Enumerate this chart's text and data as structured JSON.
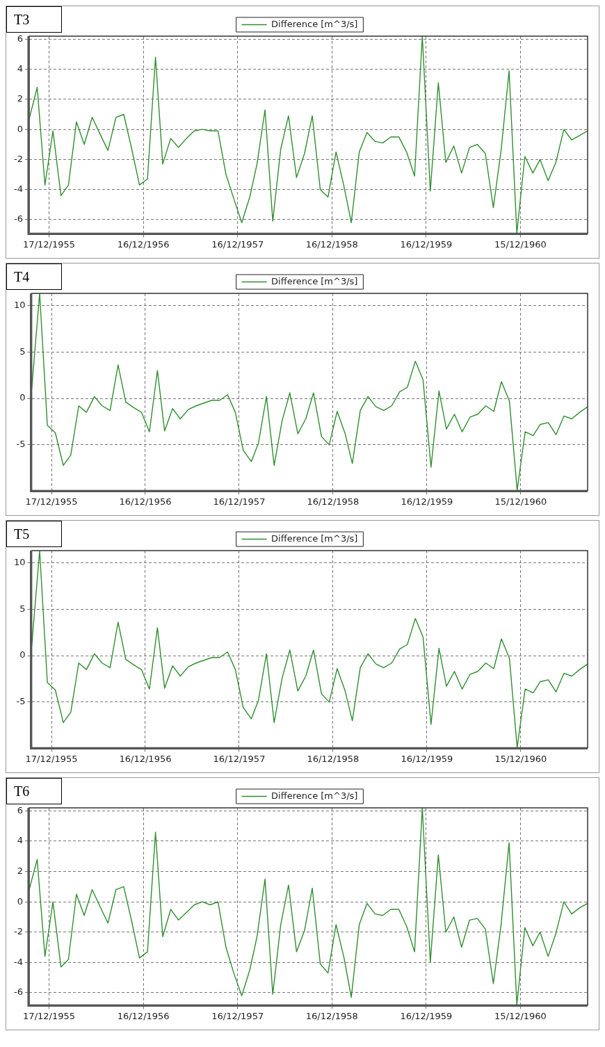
{
  "chart_data": [
    {
      "type": "line",
      "title": "T3",
      "x": [
        "1955-10",
        "1955-11",
        "1955-12",
        "1956-01",
        "1956-02",
        "1956-03",
        "1956-04",
        "1956-05",
        "1956-06",
        "1956-07",
        "1956-08",
        "1956-09",
        "1956-10",
        "1956-11",
        "1956-12",
        "1957-01",
        "1957-02",
        "1957-03",
        "1957-04",
        "1957-05",
        "1957-06",
        "1957-07",
        "1957-08",
        "1957-09",
        "1957-10",
        "1957-11",
        "1957-12",
        "1958-01",
        "1958-02",
        "1958-03",
        "1958-04",
        "1958-05",
        "1958-06",
        "1958-07",
        "1958-08",
        "1958-09",
        "1958-10",
        "1958-11",
        "1958-12",
        "1959-01",
        "1959-02",
        "1959-03",
        "1959-04",
        "1959-05",
        "1959-06",
        "1959-07",
        "1959-08",
        "1959-09",
        "1959-10",
        "1959-11",
        "1959-12",
        "1960-01",
        "1960-02",
        "1960-03",
        "1960-04",
        "1960-05",
        "1960-06",
        "1960-07",
        "1960-08",
        "1960-09",
        "1960-10",
        "1960-11",
        "1960-12",
        "1961-01",
        "1961-02",
        "1961-03",
        "1961-04",
        "1961-05",
        "1961-06",
        "1961-07",
        "1961-08",
        "1961-09"
      ],
      "series": [
        {
          "name": "Difference [m^3/s]",
          "color": "#2f8f2f",
          "values": [
            0.7,
            2.8,
            -3.7,
            -0.1,
            -4.4,
            -3.7,
            0.5,
            -1.0,
            0.8,
            -0.3,
            -1.4,
            0.8,
            1.0,
            -1.3,
            -3.7,
            -3.3,
            4.8,
            -2.3,
            -0.6,
            -1.2,
            -0.6,
            -0.1,
            0.0,
            -0.1,
            -0.1,
            -3.0,
            -4.6,
            -6.2,
            -4.5,
            -2.3,
            1.3,
            -6.1,
            -1.3,
            0.9,
            -3.2,
            -1.6,
            0.9,
            -4.0,
            -4.5,
            -1.5,
            -3.8,
            -6.2,
            -1.5,
            -0.2,
            -0.8,
            -0.9,
            -0.5,
            -0.5,
            -1.5,
            -3.1,
            6.2,
            -4.1,
            3.1,
            -2.2,
            -1.1,
            -2.9,
            -1.2,
            -1.0,
            -1.6,
            -5.2,
            -1.4,
            3.9,
            -6.9,
            -1.8,
            -2.9,
            -2.0,
            -3.4,
            -2.2,
            0.0,
            -0.7,
            -0.4,
            -0.1
          ]
        }
      ],
      "xlim": [
        "1955-10",
        "1961-09"
      ],
      "xticks": [
        {
          "value": "1955-12-17",
          "label": "17/12/1955"
        },
        {
          "value": "1956-12-16",
          "label": "16/12/1956"
        },
        {
          "value": "1957-12-16",
          "label": "16/12/1957"
        },
        {
          "value": "1958-12-16",
          "label": "16/12/1958"
        },
        {
          "value": "1959-12-16",
          "label": "16/12/1959"
        },
        {
          "value": "1960-12-15",
          "label": "15/12/1960"
        }
      ],
      "ylim": [
        -6.9,
        6.2
      ],
      "yticks": [
        -6,
        -4,
        -2,
        0,
        2,
        4,
        6
      ],
      "grid": true,
      "legend": "top"
    },
    {
      "type": "line",
      "title": "T4",
      "x": [
        "1955-10",
        "1955-11",
        "1955-12",
        "1956-01",
        "1956-02",
        "1956-03",
        "1956-04",
        "1956-05",
        "1956-06",
        "1956-07",
        "1956-08",
        "1956-09",
        "1956-10",
        "1956-11",
        "1956-12",
        "1957-01",
        "1957-02",
        "1957-03",
        "1957-04",
        "1957-05",
        "1957-06",
        "1957-07",
        "1957-08",
        "1957-09",
        "1957-10",
        "1957-11",
        "1957-12",
        "1958-01",
        "1958-02",
        "1958-03",
        "1958-04",
        "1958-05",
        "1958-06",
        "1958-07",
        "1958-08",
        "1958-09",
        "1958-10",
        "1958-11",
        "1958-12",
        "1959-01",
        "1959-02",
        "1959-03",
        "1959-04",
        "1959-05",
        "1959-06",
        "1959-07",
        "1959-08",
        "1959-09",
        "1959-10",
        "1959-11",
        "1959-12",
        "1960-01",
        "1960-02",
        "1960-03",
        "1960-04",
        "1960-05",
        "1960-06",
        "1960-07",
        "1960-08",
        "1960-09",
        "1960-10",
        "1960-11",
        "1960-12",
        "1961-01",
        "1961-02",
        "1961-03",
        "1961-04",
        "1961-05",
        "1961-06",
        "1961-07",
        "1961-08",
        "1961-09"
      ],
      "series": [
        {
          "name": "Difference [m^3/s]",
          "color": "#2f8f2f",
          "values": [
            1.0,
            11.3,
            -2.9,
            -3.7,
            -7.2,
            -6.1,
            -0.8,
            -1.5,
            0.2,
            -0.8,
            -1.3,
            3.6,
            -0.4,
            -1.0,
            -1.5,
            -3.6,
            3.0,
            -3.5,
            -1.1,
            -2.2,
            -1.2,
            -0.8,
            -0.5,
            -0.2,
            -0.2,
            0.4,
            -1.5,
            -5.6,
            -6.8,
            -4.8,
            0.2,
            -7.2,
            -2.4,
            0.6,
            -3.8,
            -2.2,
            0.6,
            -4.1,
            -5.0,
            -1.4,
            -3.8,
            -7.0,
            -1.3,
            0.2,
            -0.9,
            -1.3,
            -0.8,
            0.7,
            1.2,
            4.0,
            2.0,
            -7.4,
            0.8,
            -3.3,
            -1.7,
            -3.6,
            -2.0,
            -1.7,
            -0.8,
            -1.4,
            1.8,
            -0.3,
            -9.9,
            -3.6,
            -4.0,
            -2.8,
            -2.6,
            -3.9,
            -1.9,
            -2.2,
            -1.5,
            -0.9
          ]
        }
      ],
      "xlim": [
        "1955-10",
        "1961-09"
      ],
      "xticks": [
        {
          "value": "1955-12-17",
          "label": "17/12/1955"
        },
        {
          "value": "1956-12-16",
          "label": "16/12/1956"
        },
        {
          "value": "1957-12-16",
          "label": "16/12/1957"
        },
        {
          "value": "1958-12-16",
          "label": "16/12/1958"
        },
        {
          "value": "1959-12-16",
          "label": "16/12/1959"
        },
        {
          "value": "1960-12-15",
          "label": "15/12/1960"
        }
      ],
      "ylim": [
        -9.9,
        11.3
      ],
      "yticks": [
        -5,
        0,
        5,
        10
      ],
      "grid": true,
      "legend": "top"
    },
    {
      "type": "line",
      "title": "T5",
      "x": [
        "1955-10",
        "1955-11",
        "1955-12",
        "1956-01",
        "1956-02",
        "1956-03",
        "1956-04",
        "1956-05",
        "1956-06",
        "1956-07",
        "1956-08",
        "1956-09",
        "1956-10",
        "1956-11",
        "1956-12",
        "1957-01",
        "1957-02",
        "1957-03",
        "1957-04",
        "1957-05",
        "1957-06",
        "1957-07",
        "1957-08",
        "1957-09",
        "1957-10",
        "1957-11",
        "1957-12",
        "1958-01",
        "1958-02",
        "1958-03",
        "1958-04",
        "1958-05",
        "1958-06",
        "1958-07",
        "1958-08",
        "1958-09",
        "1958-10",
        "1958-11",
        "1958-12",
        "1959-01",
        "1959-02",
        "1959-03",
        "1959-04",
        "1959-05",
        "1959-06",
        "1959-07",
        "1959-08",
        "1959-09",
        "1959-10",
        "1959-11",
        "1959-12",
        "1960-01",
        "1960-02",
        "1960-03",
        "1960-04",
        "1960-05",
        "1960-06",
        "1960-07",
        "1960-08",
        "1960-09",
        "1960-10",
        "1960-11",
        "1960-12",
        "1961-01",
        "1961-02",
        "1961-03",
        "1961-04",
        "1961-05",
        "1961-06",
        "1961-07",
        "1961-08",
        "1961-09"
      ],
      "series": [
        {
          "name": "Difference [m^3/s]",
          "color": "#2f8f2f",
          "values": [
            1.0,
            11.3,
            -2.9,
            -3.7,
            -7.2,
            -6.1,
            -0.8,
            -1.5,
            0.2,
            -0.8,
            -1.3,
            3.6,
            -0.4,
            -1.0,
            -1.5,
            -3.6,
            3.0,
            -3.5,
            -1.1,
            -2.2,
            -1.2,
            -0.8,
            -0.5,
            -0.2,
            -0.2,
            0.4,
            -1.5,
            -5.6,
            -6.8,
            -4.8,
            0.2,
            -7.2,
            -2.4,
            0.6,
            -3.8,
            -2.2,
            0.6,
            -4.1,
            -5.0,
            -1.4,
            -3.8,
            -7.0,
            -1.3,
            0.2,
            -0.9,
            -1.3,
            -0.8,
            0.7,
            1.2,
            4.0,
            2.0,
            -7.4,
            0.8,
            -3.3,
            -1.7,
            -3.6,
            -2.0,
            -1.7,
            -0.8,
            -1.4,
            1.8,
            -0.3,
            -9.9,
            -3.6,
            -4.0,
            -2.8,
            -2.6,
            -3.9,
            -1.9,
            -2.2,
            -1.5,
            -0.9
          ]
        }
      ],
      "xlim": [
        "1955-10",
        "1961-09"
      ],
      "xticks": [
        {
          "value": "1955-12-17",
          "label": "17/12/1955"
        },
        {
          "value": "1956-12-16",
          "label": "16/12/1956"
        },
        {
          "value": "1957-12-16",
          "label": "16/12/1957"
        },
        {
          "value": "1958-12-16",
          "label": "16/12/1958"
        },
        {
          "value": "1959-12-16",
          "label": "16/12/1959"
        },
        {
          "value": "1960-12-15",
          "label": "15/12/1960"
        }
      ],
      "ylim": [
        -9.9,
        11.3
      ],
      "yticks": [
        -5,
        0,
        5,
        10
      ],
      "grid": true,
      "legend": "top"
    },
    {
      "type": "line",
      "title": "T6",
      "x": [
        "1955-10",
        "1955-11",
        "1955-12",
        "1956-01",
        "1956-02",
        "1956-03",
        "1956-04",
        "1956-05",
        "1956-06",
        "1956-07",
        "1956-08",
        "1956-09",
        "1956-10",
        "1956-11",
        "1956-12",
        "1957-01",
        "1957-02",
        "1957-03",
        "1957-04",
        "1957-05",
        "1957-06",
        "1957-07",
        "1957-08",
        "1957-09",
        "1957-10",
        "1957-11",
        "1957-12",
        "1958-01",
        "1958-02",
        "1958-03",
        "1958-04",
        "1958-05",
        "1958-06",
        "1958-07",
        "1958-08",
        "1958-09",
        "1958-10",
        "1958-11",
        "1958-12",
        "1959-01",
        "1959-02",
        "1959-03",
        "1959-04",
        "1959-05",
        "1959-06",
        "1959-07",
        "1959-08",
        "1959-09",
        "1959-10",
        "1959-11",
        "1959-12",
        "1960-01",
        "1960-02",
        "1960-03",
        "1960-04",
        "1960-05",
        "1960-06",
        "1960-07",
        "1960-08",
        "1960-09",
        "1960-10",
        "1960-11",
        "1960-12",
        "1961-01",
        "1961-02",
        "1961-03",
        "1961-04",
        "1961-05",
        "1961-06",
        "1961-07",
        "1961-08",
        "1961-09"
      ],
      "series": [
        {
          "name": "Difference [m^3/s]",
          "color": "#2f8f2f",
          "values": [
            0.8,
            2.8,
            -3.6,
            0.0,
            -4.3,
            -3.8,
            0.5,
            -0.9,
            0.8,
            -0.3,
            -1.4,
            0.8,
            1.0,
            -1.3,
            -3.7,
            -3.3,
            4.6,
            -2.3,
            -0.5,
            -1.2,
            -0.7,
            -0.2,
            0.0,
            -0.2,
            0.0,
            -3.0,
            -4.7,
            -6.2,
            -4.5,
            -2.3,
            1.5,
            -6.1,
            -1.5,
            1.1,
            -3.3,
            -1.9,
            0.9,
            -4.1,
            -4.7,
            -1.5,
            -3.7,
            -6.3,
            -1.5,
            -0.1,
            -0.8,
            -0.9,
            -0.5,
            -0.5,
            -1.6,
            -3.3,
            6.2,
            -4.0,
            3.1,
            -2.0,
            -1.0,
            -3.0,
            -1.2,
            -1.1,
            -1.8,
            -5.4,
            -1.5,
            3.9,
            -6.8,
            -1.7,
            -2.9,
            -2.0,
            -3.6,
            -2.1,
            0.0,
            -0.8,
            -0.4,
            -0.1
          ]
        }
      ],
      "xlim": [
        "1955-10",
        "1961-09"
      ],
      "xticks": [
        {
          "value": "1955-12-17",
          "label": "17/12/1955"
        },
        {
          "value": "1956-12-16",
          "label": "16/12/1956"
        },
        {
          "value": "1957-12-16",
          "label": "16/12/1957"
        },
        {
          "value": "1958-12-16",
          "label": "16/12/1958"
        },
        {
          "value": "1959-12-16",
          "label": "16/12/1959"
        },
        {
          "value": "1960-12-15",
          "label": "15/12/1960"
        }
      ],
      "ylim": [
        -6.8,
        6.2
      ],
      "yticks": [
        -6,
        -4,
        -2,
        0,
        2,
        4,
        6
      ],
      "grid": true,
      "legend": "top"
    }
  ]
}
